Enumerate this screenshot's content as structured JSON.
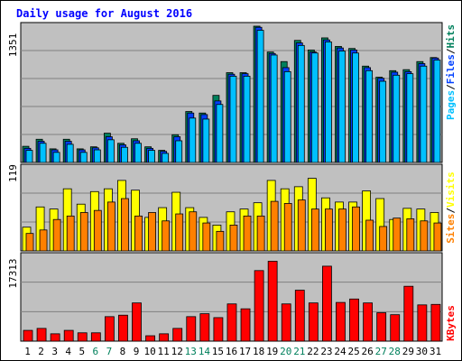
{
  "title": "Daily usage for August 2016",
  "legend": {
    "pages": "Pages",
    "files": "Files",
    "hits": "Hits",
    "sites": "Sites",
    "visits": "Visits",
    "kbytes": "KBytes",
    "slash": "/"
  },
  "colors": {
    "background": "#ffffff",
    "plot_bg": "#c0c0c0",
    "frame": "#000000",
    "title": "#0000ff",
    "hits": "#00805c",
    "files": "#0040ff",
    "pages": "#00c0ff",
    "visits": "#ffff00",
    "sites": "#ff8000",
    "kbytes": "#ff0000",
    "weekday_label": "#000000",
    "weekend_label": "#00805c"
  },
  "chart_data": [
    {
      "type": "bar",
      "title": "Daily usage for August 2016",
      "ylabel_max": "1351",
      "ylim": [
        0,
        1351
      ],
      "grid": true,
      "categories": [
        "1",
        "2",
        "3",
        "4",
        "5",
        "6",
        "7",
        "8",
        "9",
        "10",
        "11",
        "12",
        "13",
        "14",
        "15",
        "16",
        "17",
        "18",
        "19",
        "20",
        "21",
        "22",
        "23",
        "24",
        "25",
        "26",
        "27",
        "28",
        "29",
        "30",
        "31"
      ],
      "weekend_days": [
        6,
        7,
        13,
        14,
        20,
        21,
        27,
        28
      ],
      "series": [
        {
          "name": "Hits",
          "values": [
            160,
            230,
            135,
            230,
            135,
            155,
            290,
            190,
            235,
            155,
            120,
            275,
            505,
            490,
            665,
            890,
            890,
            1351,
            1095,
            1000,
            1210,
            1115,
            1235,
            1150,
            1130,
            955,
            845,
            910,
            920,
            1000,
            1040
          ]
        },
        {
          "name": "Files",
          "values": [
            140,
            210,
            125,
            210,
            125,
            145,
            255,
            175,
            215,
            140,
            110,
            255,
            490,
            475,
            610,
            875,
            880,
            1340,
            1080,
            940,
            1185,
            1095,
            1215,
            1135,
            1115,
            940,
            835,
            895,
            900,
            980,
            1035
          ]
        },
        {
          "name": "Pages",
          "values": [
            120,
            190,
            100,
            180,
            100,
            125,
            225,
            150,
            190,
            120,
            90,
            215,
            440,
            430,
            575,
            855,
            855,
            1310,
            1065,
            900,
            1160,
            1085,
            1195,
            1105,
            1085,
            910,
            805,
            865,
            880,
            955,
            1015
          ]
        }
      ]
    },
    {
      "type": "bar",
      "ylabel_max": "119",
      "ylim": [
        0,
        119
      ],
      "grid": true,
      "categories": [
        "1",
        "2",
        "3",
        "4",
        "5",
        "6",
        "7",
        "8",
        "9",
        "10",
        "11",
        "12",
        "13",
        "14",
        "15",
        "16",
        "17",
        "18",
        "19",
        "20",
        "21",
        "22",
        "23",
        "24",
        "25",
        "26",
        "27",
        "28",
        "29",
        "30",
        "31"
      ],
      "series": [
        {
          "name": "Visits",
          "values": [
            34,
            63,
            60,
            89,
            67,
            85,
            89,
            101,
            87,
            48,
            62,
            84,
            62,
            48,
            37,
            56,
            60,
            69,
            101,
            89,
            92,
            104,
            76,
            70,
            70,
            86,
            75,
            45,
            61,
            60,
            55
          ]
        },
        {
          "name": "Sites",
          "values": [
            25,
            30,
            45,
            50,
            55,
            58,
            70,
            75,
            50,
            55,
            43,
            53,
            56,
            40,
            28,
            37,
            50,
            50,
            71,
            68,
            73,
            60,
            60,
            60,
            63,
            44,
            35,
            47,
            46,
            43,
            40
          ]
        }
      ]
    },
    {
      "type": "bar",
      "ylabel_max": "17313",
      "ylim": [
        0,
        17313
      ],
      "grid": true,
      "categories": [
        "1",
        "2",
        "3",
        "4",
        "5",
        "6",
        "7",
        "8",
        "9",
        "10",
        "11",
        "12",
        "13",
        "14",
        "15",
        "16",
        "17",
        "18",
        "19",
        "20",
        "21",
        "22",
        "23",
        "24",
        "25",
        "26",
        "27",
        "28",
        "29",
        "30",
        "31"
      ],
      "series": [
        {
          "name": "KBytes",
          "values": [
            2200,
            2600,
            1500,
            2200,
            1700,
            1700,
            5000,
            5300,
            7800,
            1100,
            1500,
            2600,
            5000,
            5600,
            4800,
            7600,
            6600,
            14400,
            16300,
            7600,
            10400,
            7800,
            15300,
            7900,
            8600,
            7800,
            5800,
            5400,
            11200,
            7400,
            7500
          ]
        }
      ]
    }
  ]
}
